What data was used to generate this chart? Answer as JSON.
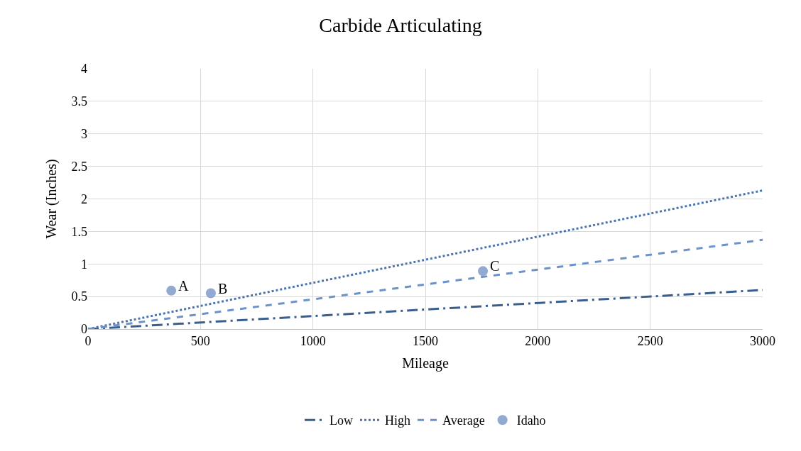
{
  "chart_data": {
    "type": "line",
    "title": "Carbide Articulating",
    "xlabel": "Mileage",
    "ylabel": "Wear (Inches)",
    "xlim": [
      0,
      3000
    ],
    "xticks": [
      0,
      500,
      1000,
      1500,
      2000,
      2500,
      3000
    ],
    "ylim": [
      0,
      4
    ],
    "yticks": [
      0,
      0.5,
      1,
      1.5,
      2,
      2.5,
      3,
      3.5,
      4
    ],
    "grid": true,
    "legend": "bottom",
    "series": [
      {
        "name": "Low",
        "color": "#3a5f8f",
        "x": [
          0,
          3000
        ],
        "values": [
          0,
          0.6
        ],
        "line_style": "dashdot",
        "marker": "none"
      },
      {
        "name": "High",
        "color": "#4a74b0",
        "x": [
          0,
          3000
        ],
        "values": [
          0,
          2.13
        ],
        "line_style": "dotted",
        "marker": "none"
      },
      {
        "name": "Average",
        "color": "#6c93c9",
        "x": [
          0,
          3000
        ],
        "values": [
          0,
          1.37
        ],
        "line_style": "dashed",
        "marker": "none"
      },
      {
        "name": "Idaho",
        "type": "scatter",
        "color": "#92a9d1",
        "x": [
          370,
          546,
          1756
        ],
        "values": [
          0.59,
          0.55,
          0.89
        ],
        "marker": "circle"
      }
    ],
    "annotations": [
      {
        "text": "A",
        "x": 370,
        "y": 0.59
      },
      {
        "text": "B",
        "x": 546,
        "y": 0.55
      },
      {
        "text": "C",
        "x": 1756,
        "y": 0.89
      }
    ]
  }
}
